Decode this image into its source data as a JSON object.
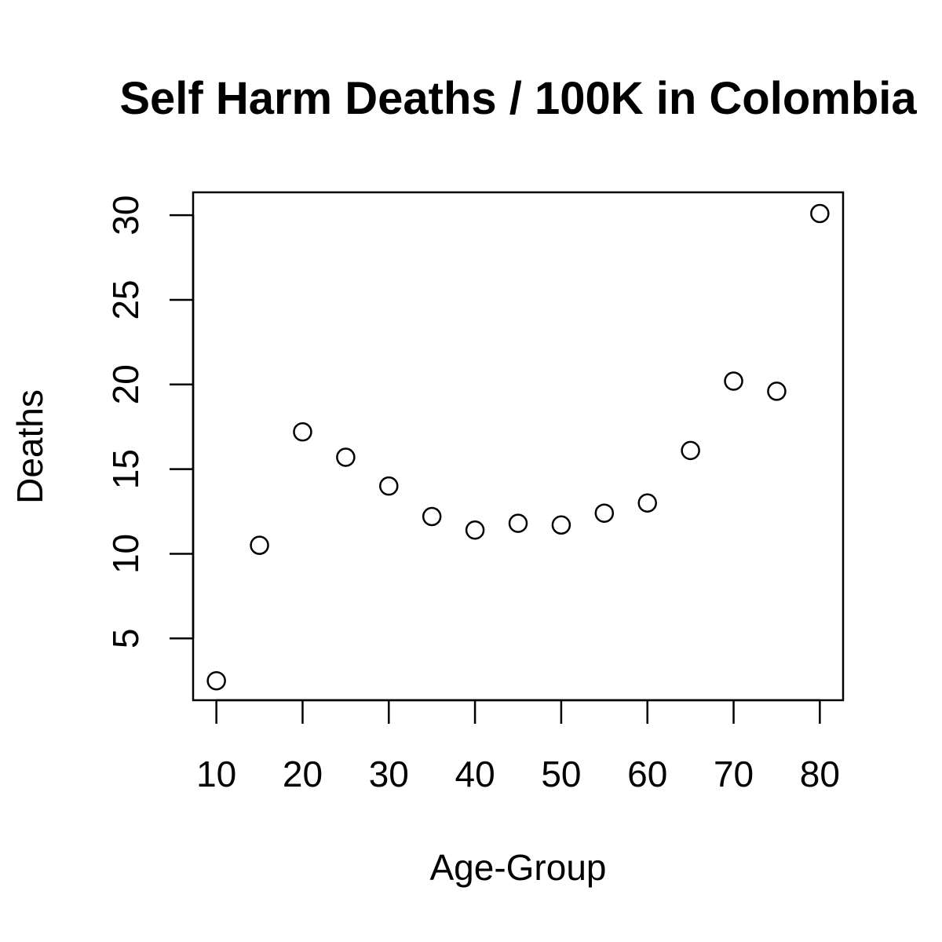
{
  "chart_data": {
    "type": "scatter",
    "title": "Self Harm Deaths / 100K in Colombia",
    "xlabel": "Age-Group",
    "ylabel": "Deaths",
    "xlim": [
      7.3,
      82.7
    ],
    "ylim": [
      1.35,
      31.35
    ],
    "xticks": [
      10,
      20,
      30,
      40,
      50,
      60,
      70,
      80
    ],
    "yticks": [
      5,
      10,
      15,
      20,
      25,
      30
    ],
    "marker": "open-circle",
    "color": "#000000",
    "grid": false,
    "x": [
      10,
      15,
      20,
      25,
      30,
      35,
      40,
      45,
      50,
      55,
      60,
      65,
      70,
      75,
      80
    ],
    "y": [
      2.5,
      10.5,
      17.2,
      15.7,
      14.0,
      12.2,
      11.4,
      11.8,
      11.7,
      12.4,
      13.0,
      16.1,
      20.2,
      19.6,
      30.1
    ]
  }
}
